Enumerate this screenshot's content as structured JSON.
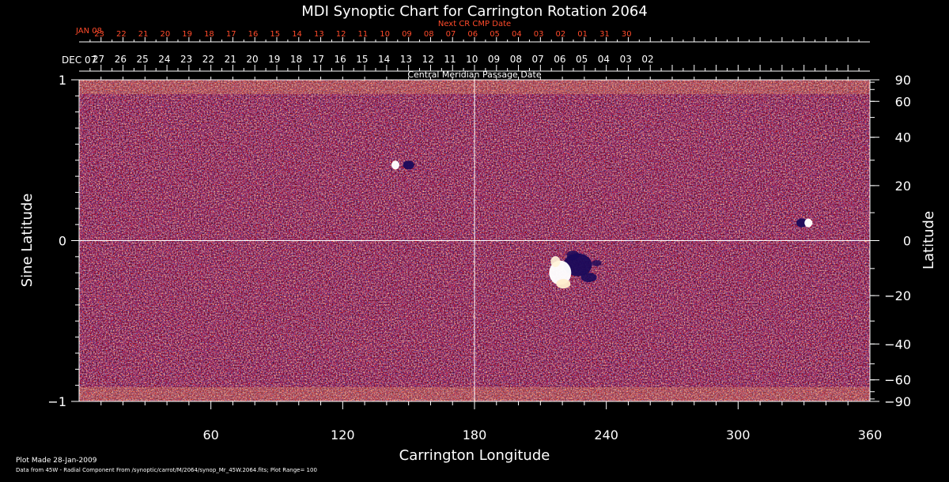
{
  "chart_data": {
    "type": "heatmap",
    "title": "MDI Synoptic Chart for Carrington Rotation 2064",
    "xlabel": "Carrington Longitude",
    "ylabel_left": "Sine Latitude",
    "ylabel_right": "Latitude",
    "xlim": [
      0,
      360
    ],
    "ylim": [
      -1,
      1
    ],
    "x_ticks": [
      60,
      120,
      180,
      240,
      300,
      360
    ],
    "y_left_ticks": [
      {
        "value": 1,
        "label": "1"
      },
      {
        "value": 0,
        "label": "0"
      },
      {
        "value": -1,
        "label": "−1"
      }
    ],
    "y_right_ticks": [
      90,
      60,
      40,
      20,
      0,
      -20,
      -40,
      -60,
      -90
    ],
    "y_right_tick_labels": [
      "90",
      "60",
      "40",
      "20",
      "0",
      "−20",
      "−40",
      "−60",
      "−90"
    ],
    "cmp_date_axis": {
      "label": "Central Meridian Passage Date",
      "start_label": "DEC 07",
      "dates": [
        "27",
        "26",
        "25",
        "24",
        "23",
        "22",
        "21",
        "20",
        "19",
        "18",
        "17",
        "16",
        "15",
        "14",
        "13",
        "12",
        "11",
        "10",
        "09",
        "08",
        "07",
        "06",
        "05",
        "04",
        "03",
        "02"
      ],
      "dates_x": [
        10,
        20,
        30,
        40,
        50,
        60,
        70,
        80,
        90,
        100,
        110,
        120,
        130,
        140,
        150,
        160,
        170,
        180,
        190,
        200,
        210,
        220,
        230,
        240,
        250,
        260
      ]
    },
    "next_cr_axis": {
      "label": "Next CR CMP Date",
      "start_label": "JAN 08",
      "dates": [
        "23",
        "22",
        "21",
        "20",
        "19",
        "18",
        "17",
        "16",
        "15",
        "14",
        "13",
        "12",
        "11",
        "10",
        "09",
        "08",
        "07",
        "06",
        "05",
        "04",
        "03",
        "02",
        "01",
        "31",
        "30"
      ],
      "dates_x": [
        20,
        30,
        40,
        50,
        60,
        70,
        80,
        90,
        100,
        110,
        120,
        130,
        140,
        150,
        160,
        170,
        180,
        190,
        200,
        210,
        220,
        230,
        240,
        250,
        260
      ]
    },
    "grid_lines": {
      "x": 180,
      "y": 0
    },
    "features": [
      {
        "name": "active-region-main",
        "lon": 222,
        "sinlat": -0.17,
        "positive_lon": 219,
        "negative_lon": 227
      },
      {
        "name": "active-region-north",
        "lon": 147,
        "sinlat": 0.47,
        "positive_lon": 144,
        "negative_lon": 150
      },
      {
        "name": "spot-east",
        "lon": 331,
        "sinlat": 0.11,
        "positive_lon": 332,
        "negative_lon": 329
      }
    ],
    "colors": {
      "background": "#000000",
      "field_base": "#ff4a08",
      "positive": "#ffffff",
      "negative": "#1a0a5a",
      "next_cr_axis": "#ff4a2a"
    }
  },
  "footer": {
    "plot_made": "Plot Made 28-Jan-2009",
    "data_source": "Data from 45W - Radial Component From /synoptic/carrot/M/2064/synop_Mr_45W.2064.fits; Plot Range=  100"
  }
}
